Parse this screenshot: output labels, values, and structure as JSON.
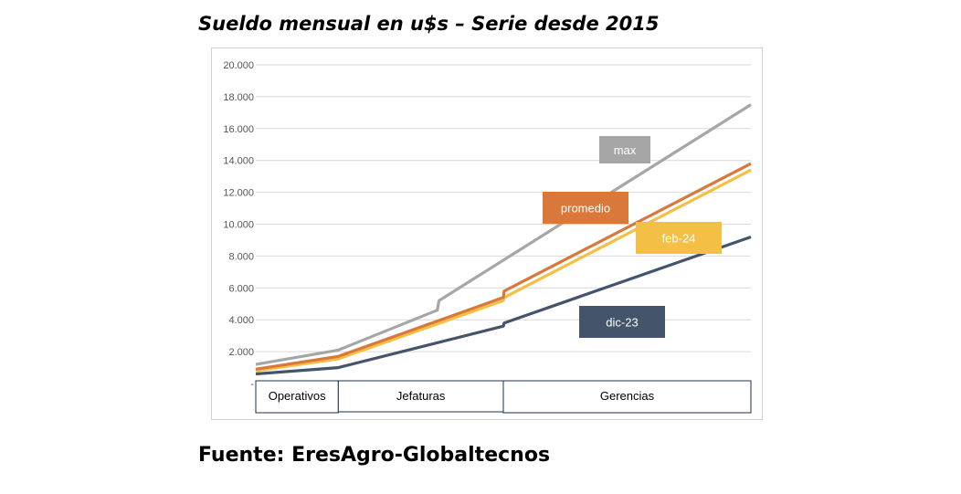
{
  "title": "Sueldo mensual en u$s – Serie desde 2015",
  "source": "Fuente: EresAgro-Globaltecnos",
  "chart_data": {
    "type": "line",
    "ylim": [
      0,
      20000
    ],
    "yticks": [
      0,
      2000,
      4000,
      6000,
      8000,
      10000,
      12000,
      14000,
      16000,
      18000,
      20000
    ],
    "ytick_labels": [
      "-",
      "2.000",
      "4.000",
      "6.000",
      "8.000",
      "10.000",
      "12.000",
      "14.000",
      "16.000",
      "18.000",
      "20.000"
    ],
    "grid": true,
    "categories": [
      "Operativos",
      "Jefaturas",
      "Gerencias"
    ],
    "category_spans": [
      [
        0,
        1
      ],
      [
        1,
        3
      ],
      [
        3,
        6
      ]
    ],
    "series": [
      {
        "name": "max",
        "color": "#a6a6a6",
        "points": [
          [
            0,
            1200
          ],
          [
            1,
            2100
          ],
          [
            2.2,
            4600
          ],
          [
            2.22,
            5200
          ],
          [
            6,
            17500
          ]
        ]
      },
      {
        "name": "promedio",
        "color": "#d9783a",
        "points": [
          [
            0,
            900
          ],
          [
            1,
            1700
          ],
          [
            3,
            5400
          ],
          [
            3.01,
            5800
          ],
          [
            6,
            13800
          ]
        ]
      },
      {
        "name": "feb-24",
        "color": "#f4bf45",
        "points": [
          [
            0,
            800
          ],
          [
            1,
            1550
          ],
          [
            3,
            5200
          ],
          [
            3.01,
            5400
          ],
          [
            6,
            13400
          ]
        ]
      },
      {
        "name": "dic-23",
        "color": "#44546a",
        "points": [
          [
            0,
            600
          ],
          [
            1,
            1000
          ],
          [
            3,
            3600
          ],
          [
            3.01,
            3800
          ],
          [
            6,
            9200
          ]
        ]
      }
    ],
    "annotations": [
      {
        "text": "max",
        "series": "max",
        "bg": "#a6a6a6"
      },
      {
        "text": "promedio",
        "series": "promedio",
        "bg": "#d9783a"
      },
      {
        "text": "feb-24",
        "series": "feb-24",
        "bg": "#f4bf45"
      },
      {
        "text": "dic-23",
        "series": "dic-23",
        "bg": "#44546a"
      }
    ]
  }
}
